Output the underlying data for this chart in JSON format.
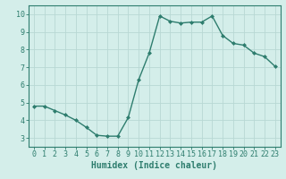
{
  "x": [
    0,
    1,
    2,
    3,
    4,
    5,
    6,
    7,
    8,
    9,
    10,
    11,
    12,
    13,
    14,
    15,
    16,
    17,
    18,
    19,
    20,
    21,
    22,
    23
  ],
  "y": [
    4.8,
    4.8,
    4.55,
    4.3,
    4.0,
    3.6,
    3.15,
    3.1,
    3.1,
    4.15,
    6.3,
    7.8,
    9.9,
    9.6,
    9.5,
    9.55,
    9.55,
    9.9,
    8.8,
    8.35,
    8.25,
    7.8,
    7.6,
    7.05
  ],
  "line_color": "#2e7d6e",
  "marker": "D",
  "marker_size": 2.0,
  "line_width": 1.0,
  "bg_color": "#d4eeea",
  "grid_color": "#b8d8d4",
  "xlabel": "Humidex (Indice chaleur)",
  "xlim": [
    -0.5,
    23.5
  ],
  "ylim": [
    2.5,
    10.5
  ],
  "yticks": [
    3,
    4,
    5,
    6,
    7,
    8,
    9,
    10
  ],
  "xticks": [
    0,
    1,
    2,
    3,
    4,
    5,
    6,
    7,
    8,
    9,
    10,
    11,
    12,
    13,
    14,
    15,
    16,
    17,
    18,
    19,
    20,
    21,
    22,
    23
  ],
  "xtick_labels": [
    "0",
    "1",
    "2",
    "3",
    "4",
    "5",
    "6",
    "7",
    "8",
    "9",
    "10",
    "11",
    "12",
    "13",
    "14",
    "15",
    "16",
    "17",
    "18",
    "19",
    "20",
    "21",
    "22",
    "23"
  ],
  "axis_color": "#2e7d6e",
  "tick_color": "#2e7d6e",
  "label_color": "#2e7d6e",
  "font_size_tick": 6,
  "font_size_label": 7
}
